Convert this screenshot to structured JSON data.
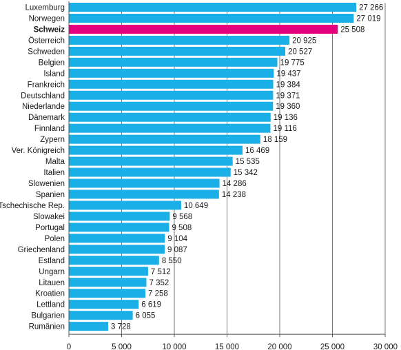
{
  "chart_data": {
    "type": "bar",
    "orientation": "horizontal",
    "title": "",
    "xlabel": "",
    "ylabel": "",
    "xlim": [
      0,
      30000
    ],
    "grid": true,
    "legend": "none",
    "categories": [
      "Luxemburg",
      "Norwegen",
      "Schweiz",
      "Österreich",
      "Schweden",
      "Belgien",
      "Island",
      "Frankreich",
      "Deutschland",
      "Niederlande",
      "Dänemark",
      "Finnland",
      "Zypern",
      "Ver. Königreich",
      "Malta",
      "Italien",
      "Slowenien",
      "Spanien",
      "Tschechische Rep.",
      "Slowakei",
      "Portugal",
      "Polen",
      "Griechenland",
      "Estland",
      "Ungarn",
      "Litauen",
      "Kroatien",
      "Lettland",
      "Bulgarien",
      "Rumänien"
    ],
    "values": [
      27266,
      27019,
      25508,
      20925,
      20527,
      19775,
      19437,
      19384,
      19371,
      19360,
      19136,
      19116,
      18159,
      16469,
      15535,
      15342,
      14286,
      14238,
      10649,
      9568,
      9508,
      9104,
      9087,
      8550,
      7512,
      7352,
      7258,
      6619,
      6055,
      3728
    ],
    "value_labels": [
      "27 266",
      "27 019",
      "25 508",
      "20 925",
      "20 527",
      "19 775",
      "19 437",
      "19 384",
      "19 371",
      "19 360",
      "19 136",
      "19 116",
      "18 159",
      "16 469",
      "15 535",
      "15 342",
      "14 286",
      "14 238",
      "10 649",
      "9 568",
      "9 508",
      "9 104",
      "9 087",
      "8 550",
      "7 512",
      "7 352",
      "7 258",
      "6 619",
      "6 055",
      "3 728"
    ],
    "highlight_category": "Schweiz",
    "x_ticks": [
      0,
      5000,
      10000,
      15000,
      20000,
      25000,
      30000
    ],
    "x_tick_labels": [
      "0",
      "5 000",
      "10 000",
      "15 000",
      "20 000",
      "25 000",
      "30 000"
    ],
    "colors": {
      "bar": "#1aafe6",
      "highlight": "#e5007e",
      "grid": "#777777",
      "axis": "#555555",
      "text": "#1a1a1a"
    }
  }
}
